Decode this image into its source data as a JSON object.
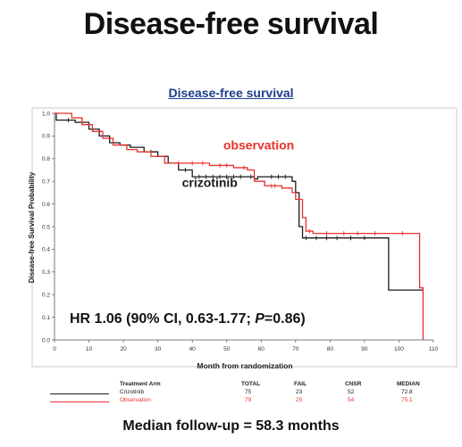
{
  "slide_title": "Disease-free survival",
  "footer": "Median follow-up = 58.3 months",
  "colors": {
    "crizotinib": "#1a1a1a",
    "observation": "#e8312c",
    "title_blue": "#1f3d8c"
  },
  "chart_data": {
    "type": "line",
    "title": "Disease-free survival",
    "xlabel": "Month from randomization",
    "ylabel": "Disease-free Survival Probability",
    "xlim": [
      0,
      110
    ],
    "ylim": [
      0,
      1.0
    ],
    "xticks": [
      "0",
      "10",
      "20",
      "30",
      "40",
      "50",
      "60",
      "70",
      "80",
      "90",
      "100",
      "110"
    ],
    "yticks": [
      "0.0",
      "0.1",
      "0.2",
      "0.3",
      "0.4",
      "0.5",
      "0.6",
      "0.7",
      "0.8",
      "0.9",
      "1.0"
    ],
    "x_tick_values": [
      0,
      10,
      20,
      30,
      40,
      50,
      60,
      70,
      80,
      90,
      100,
      110
    ],
    "y_tick_values": [
      0,
      0.1,
      0.2,
      0.3,
      0.4,
      0.5,
      0.6,
      0.7,
      0.8,
      0.9,
      1.0
    ],
    "series": [
      {
        "name": "crizotinib",
        "steps": [
          [
            0,
            1.0
          ],
          [
            0.5,
            0.97
          ],
          [
            6,
            0.96
          ],
          [
            10,
            0.93
          ],
          [
            13,
            0.9
          ],
          [
            16,
            0.87
          ],
          [
            19,
            0.86
          ],
          [
            22,
            0.85
          ],
          [
            26,
            0.83
          ],
          [
            30,
            0.81
          ],
          [
            33,
            0.78
          ],
          [
            36,
            0.75
          ],
          [
            40,
            0.72
          ],
          [
            58,
            0.71
          ],
          [
            59,
            0.72
          ],
          [
            69,
            0.7
          ],
          [
            70,
            0.65
          ],
          [
            71,
            0.5
          ],
          [
            72,
            0.45
          ],
          [
            97,
            0.22
          ],
          [
            107,
            0.22
          ]
        ],
        "censor_x": [
          4,
          8,
          28,
          38,
          42,
          44,
          46,
          48,
          50,
          52,
          54,
          57,
          63,
          65,
          67,
          73,
          76,
          79,
          82,
          86,
          90
        ]
      },
      {
        "name": "observation",
        "steps": [
          [
            0,
            1.0
          ],
          [
            5,
            0.98
          ],
          [
            8,
            0.95
          ],
          [
            11,
            0.92
          ],
          [
            14,
            0.89
          ],
          [
            17,
            0.86
          ],
          [
            21,
            0.84
          ],
          [
            24,
            0.83
          ],
          [
            28,
            0.81
          ],
          [
            32,
            0.78
          ],
          [
            45,
            0.77
          ],
          [
            52,
            0.76
          ],
          [
            56,
            0.75
          ],
          [
            58,
            0.7
          ],
          [
            61,
            0.68
          ],
          [
            66,
            0.67
          ],
          [
            69,
            0.65
          ],
          [
            70,
            0.62
          ],
          [
            72,
            0.54
          ],
          [
            73,
            0.48
          ],
          [
            75,
            0.47
          ],
          [
            106,
            0.23
          ],
          [
            107,
            0.23
          ],
          [
            107,
            0.0
          ]
        ],
        "censor_x": [
          36,
          40,
          43,
          48,
          50,
          55,
          63,
          64,
          74,
          79,
          84,
          88,
          93,
          101
        ]
      }
    ],
    "annotations": [
      {
        "text": "observation",
        "series": "observation",
        "x": 49,
        "y": 0.84
      },
      {
        "text": "crizotinib",
        "series": "crizotinib",
        "x": 37,
        "y": 0.675
      }
    ],
    "hr_text_main": "HR 1.06 (90% CI, 0.63-1.77; ",
    "hr_text_p": "P",
    "hr_text_tail": "=0.86)",
    "grid": false,
    "risk_table": {
      "headers": [
        "Treatment Arm",
        "TOTAL",
        "FAIL",
        "CNSR",
        "MEDIAN"
      ],
      "rows": [
        {
          "arm": "Crizotinib",
          "total": "75",
          "fail": "23",
          "cnsr": "52",
          "median": "72.8"
        },
        {
          "arm": "Observation",
          "total": "79",
          "fail": "25",
          "cnsr": "54",
          "median": "75.1"
        }
      ]
    }
  }
}
